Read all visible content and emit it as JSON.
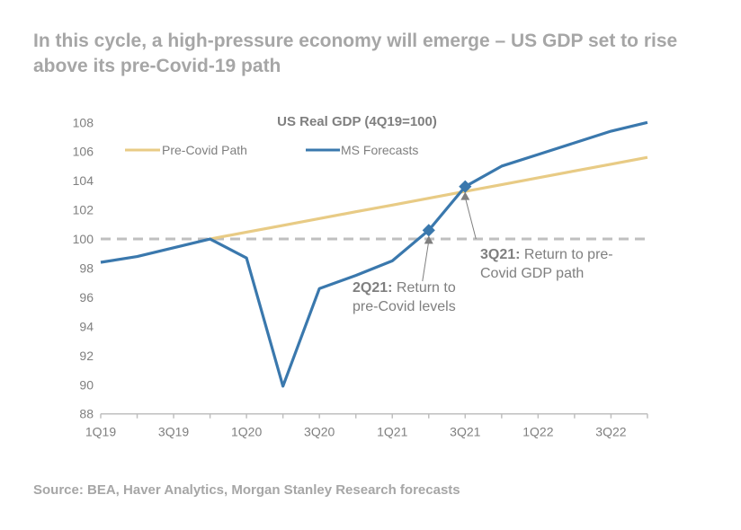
{
  "page": {
    "title": "In this cycle, a high-pressure economy will emerge – US GDP set to rise above its pre-Covid-19 path",
    "source": "Source: BEA, Haver Analytics, Morgan Stanley Research forecasts"
  },
  "chart_data": {
    "type": "line",
    "title": "US Real GDP (4Q19=100)",
    "xlabel": "",
    "ylabel": "",
    "ylim": [
      88,
      108
    ],
    "yticks": [
      "88",
      "90",
      "92",
      "94",
      "96",
      "98",
      "100",
      "102",
      "104",
      "106",
      "108"
    ],
    "x": [
      "1Q19",
      "2Q19",
      "3Q19",
      "4Q19",
      "1Q20",
      "2Q20",
      "3Q20",
      "4Q20",
      "1Q21",
      "2Q21",
      "3Q21",
      "4Q21",
      "1Q22",
      "2Q22",
      "3Q22",
      "4Q22"
    ],
    "xtick_labels": [
      "1Q19",
      "3Q19",
      "1Q20",
      "3Q20",
      "1Q21",
      "3Q21",
      "1Q22",
      "3Q22"
    ],
    "legend_position": "top",
    "series": [
      {
        "name": "Pre-Covid Path",
        "color": "#e8cb85",
        "values": [
          null,
          null,
          null,
          100,
          100.47,
          100.93,
          101.4,
          101.87,
          102.33,
          102.8,
          103.27,
          103.73,
          104.2,
          104.67,
          105.13,
          105.6
        ]
      },
      {
        "name": "MS Forecasts",
        "color": "#3a78ad",
        "values": [
          98.4,
          98.8,
          99.4,
          100,
          98.7,
          89.9,
          96.6,
          97.5,
          98.5,
          100.6,
          103.6,
          105.0,
          105.8,
          106.6,
          107.4,
          108.0
        ]
      }
    ],
    "reference_line": {
      "value": 100,
      "color": "#bfbfbf",
      "style": "dashed"
    },
    "annotations": [
      {
        "x": "2Q21",
        "bold": "2Q21:",
        "text": "Return to",
        "text2": "pre-Covid levels"
      },
      {
        "x": "3Q21",
        "bold": "3Q21:",
        "text": "Return to pre-",
        "text2": "Covid GDP path"
      }
    ]
  }
}
